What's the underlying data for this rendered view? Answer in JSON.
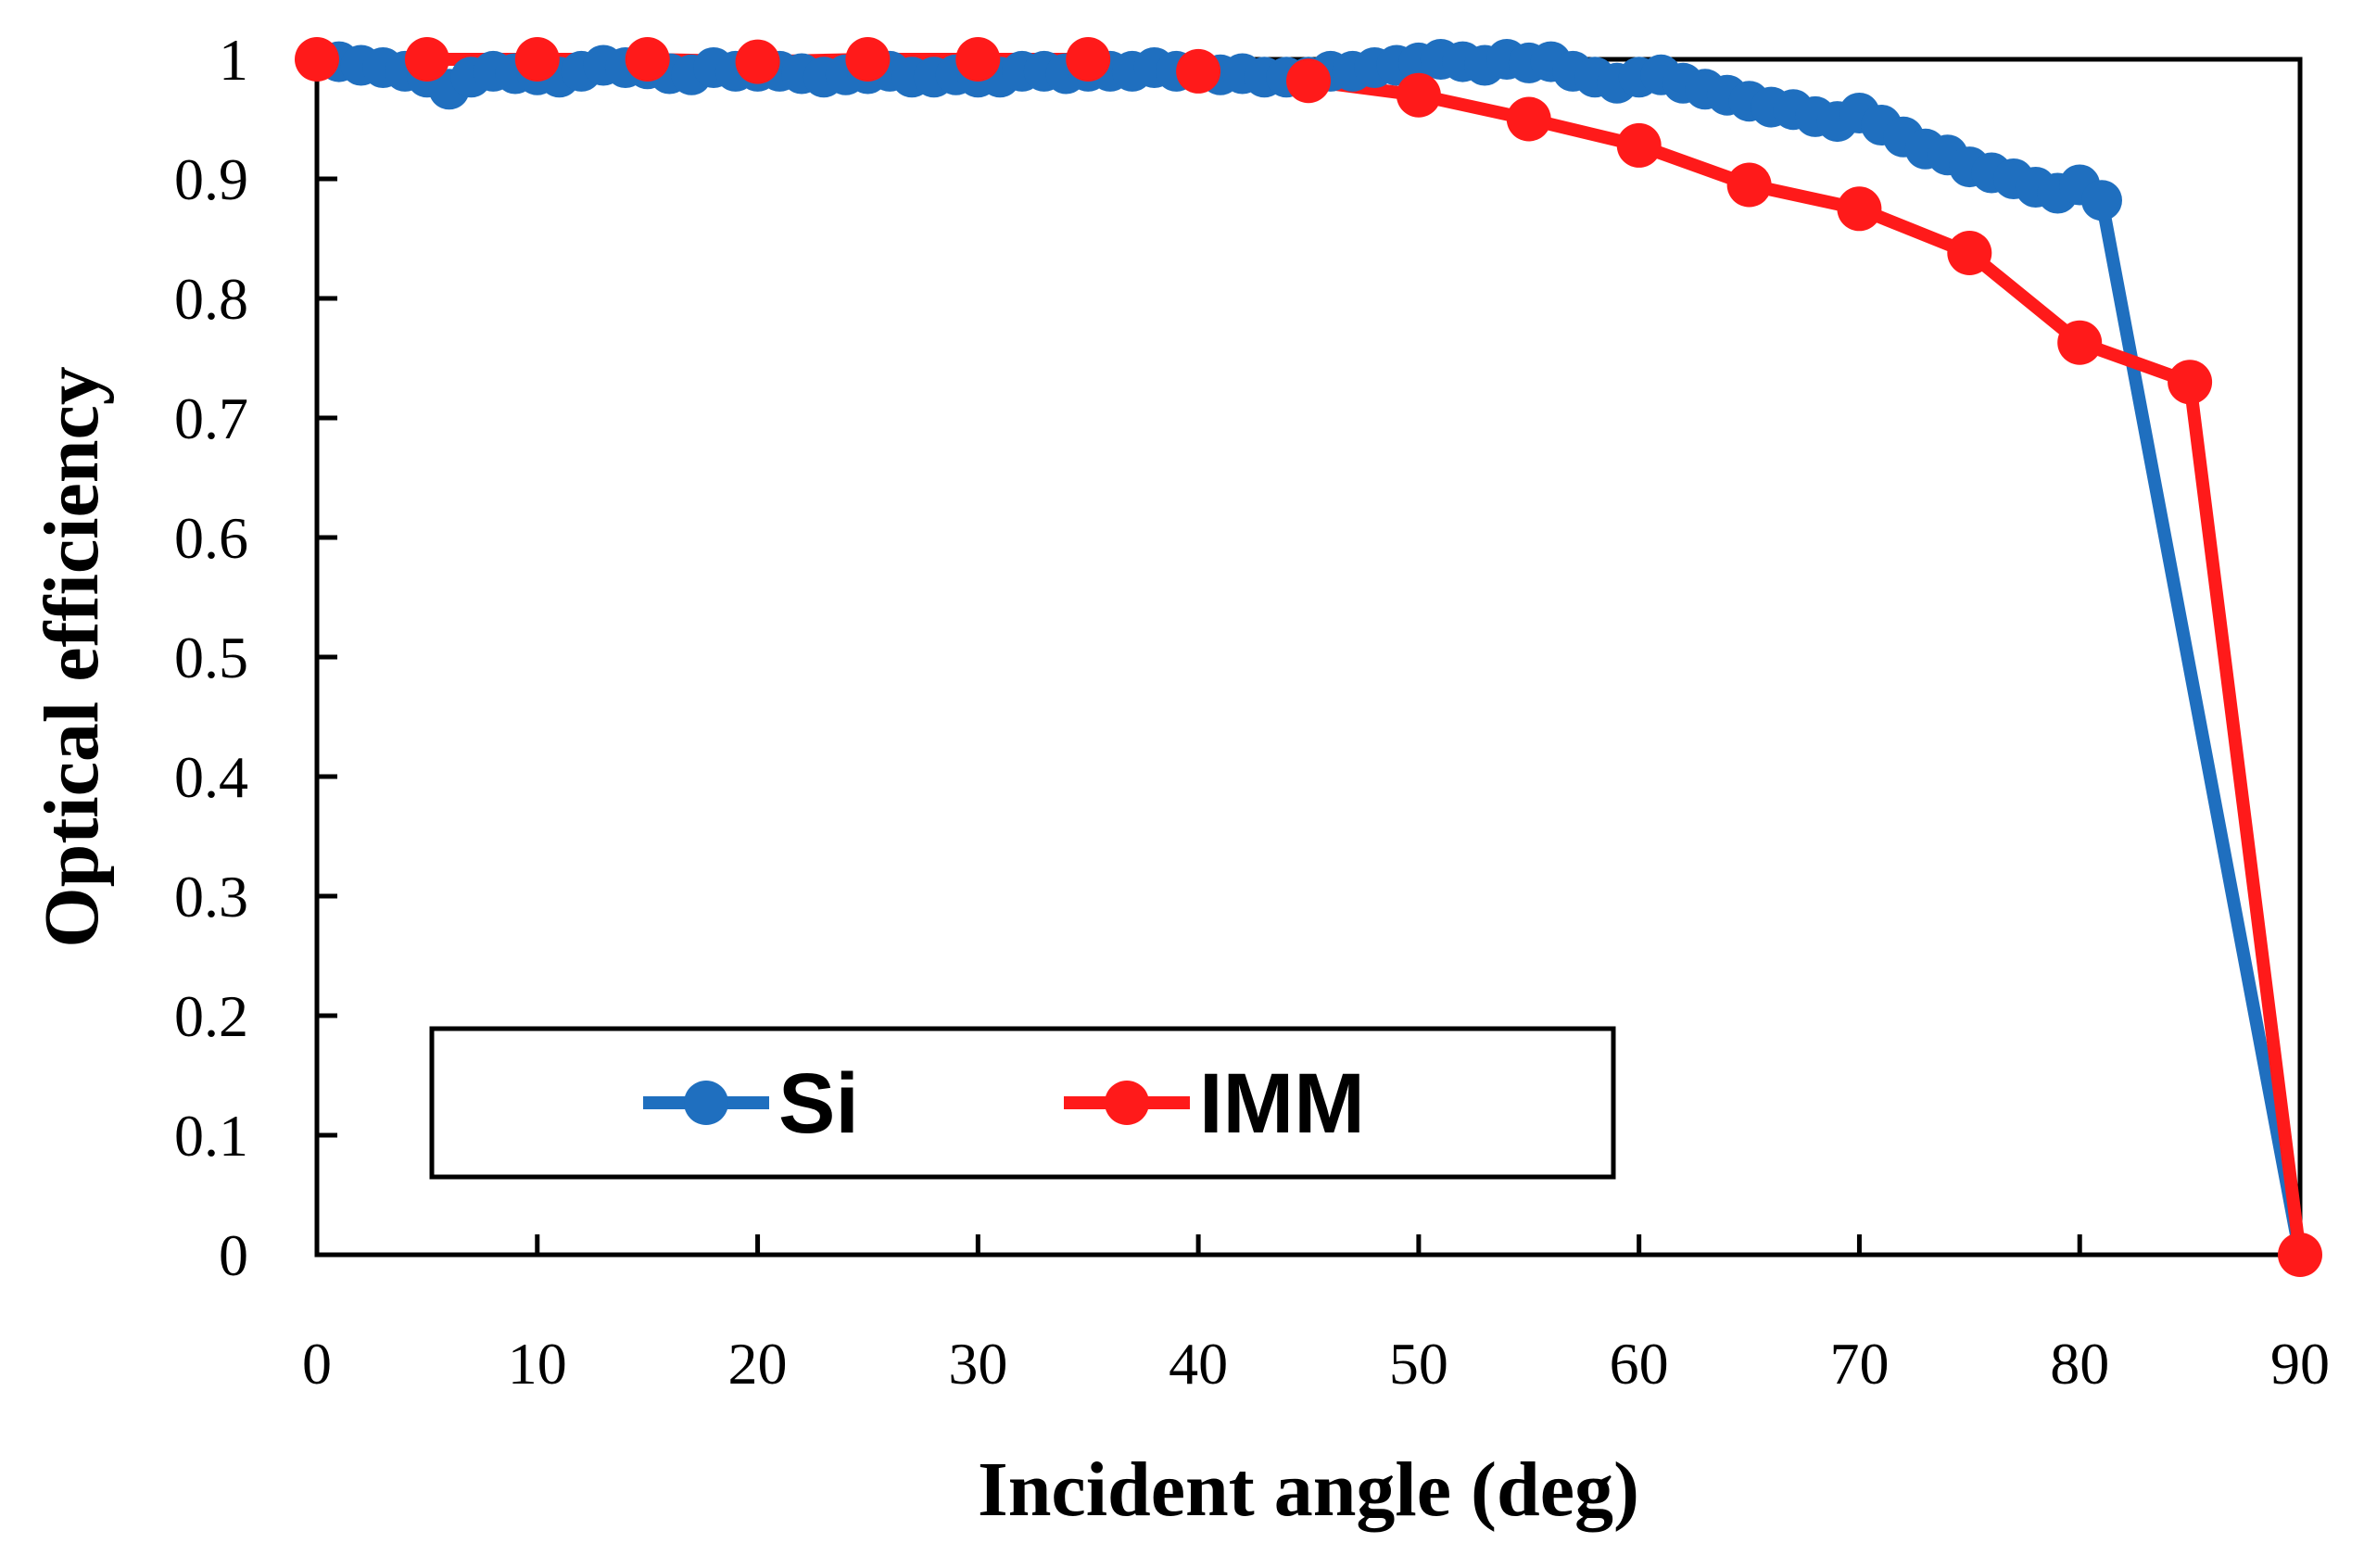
{
  "chart_data": {
    "type": "line",
    "title": "",
    "xlabel": "Incident angle (deg)",
    "ylabel": "Optical efficiency",
    "xlim": [
      0,
      90
    ],
    "ylim": [
      0,
      1
    ],
    "xticks": [
      "0",
      "10",
      "20",
      "30",
      "40",
      "50",
      "60",
      "70",
      "80",
      "90"
    ],
    "yticks": [
      "0",
      "0.1",
      "0.2",
      "0.3",
      "0.4",
      "0.5",
      "0.6",
      "0.7",
      "0.8",
      "0.9",
      "1"
    ],
    "grid": false,
    "legend": "bottom-left",
    "series": [
      {
        "name": "Si",
        "color": "#1f6fbf",
        "x": [
          0,
          1,
          2,
          3,
          4,
          5,
          6,
          7,
          8,
          9,
          10,
          11,
          12,
          13,
          14,
          15,
          16,
          17,
          18,
          19,
          20,
          21,
          22,
          23,
          24,
          25,
          26,
          27,
          28,
          29,
          30,
          31,
          32,
          33,
          34,
          35,
          36,
          37,
          38,
          39,
          40,
          41,
          42,
          43,
          44,
          45,
          46,
          47,
          48,
          49,
          50,
          51,
          52,
          53,
          54,
          55,
          56,
          57,
          58,
          59,
          60,
          61,
          62,
          63,
          64,
          65,
          66,
          67,
          68,
          69,
          70,
          71,
          72,
          73,
          74,
          75,
          76,
          77,
          78,
          79,
          80,
          81,
          90
        ],
        "y": [
          1,
          0.998,
          0.995,
          0.993,
          0.99,
          0.985,
          0.975,
          0.985,
          0.99,
          0.988,
          0.987,
          0.985,
          0.99,
          0.995,
          0.993,
          0.992,
          0.988,
          0.987,
          0.993,
          0.99,
          0.99,
          0.99,
          0.988,
          0.985,
          0.987,
          0.988,
          0.99,
          0.985,
          0.985,
          0.987,
          0.985,
          0.985,
          0.99,
          0.99,
          0.988,
          0.99,
          0.99,
          0.99,
          0.993,
          0.99,
          0.99,
          0.987,
          0.988,
          0.985,
          0.985,
          0.985,
          0.99,
          0.99,
          0.993,
          0.995,
          0.997,
          1.0,
          0.998,
          0.995,
          1.0,
          0.997,
          0.998,
          0.99,
          0.985,
          0.98,
          0.985,
          0.987,
          0.98,
          0.975,
          0.97,
          0.965,
          0.96,
          0.958,
          0.952,
          0.948,
          0.955,
          0.945,
          0.935,
          0.925,
          0.92,
          0.91,
          0.905,
          0.9,
          0.893,
          0.888,
          0.895,
          0.882,
          0
        ]
      },
      {
        "name": "IMM",
        "color": "#ff1a1a",
        "x": [
          0,
          5,
          10,
          15,
          20,
          25,
          30,
          35,
          40,
          45,
          50,
          55,
          60,
          65,
          70,
          75,
          80,
          85,
          90
        ],
        "y": [
          1,
          1,
          1,
          1,
          0.998,
          1,
          1,
          1,
          0.99,
          0.982,
          0.97,
          0.95,
          0.928,
          0.895,
          0.875,
          0.838,
          0.763,
          0.73,
          0
        ]
      }
    ]
  }
}
